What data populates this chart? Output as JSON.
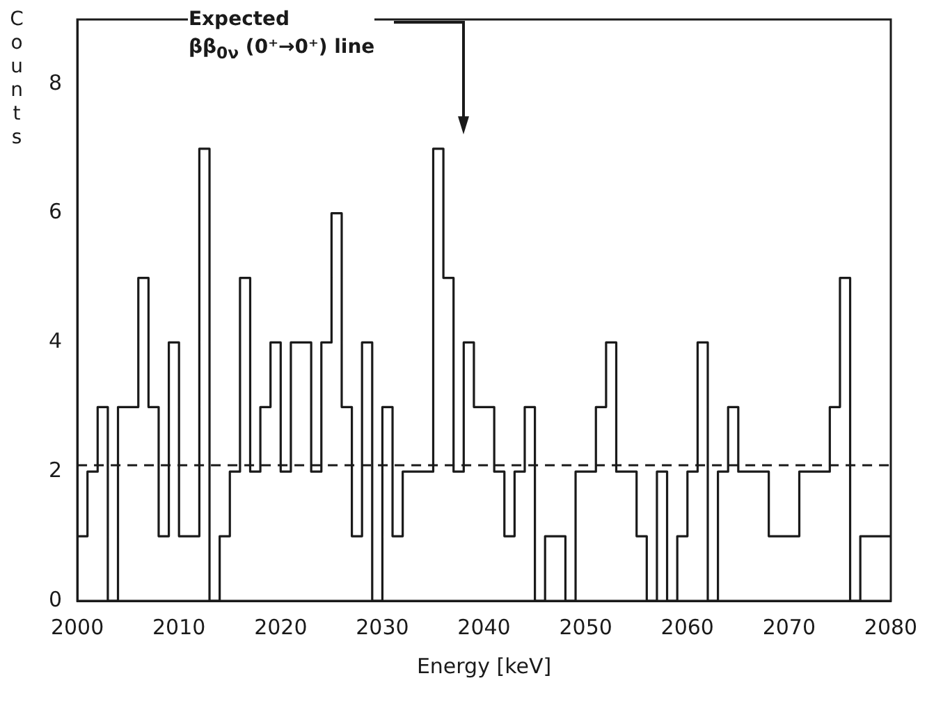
{
  "chart_data": {
    "type": "histogram",
    "xlabel": "Energy [keV]",
    "ylabel": "Counts",
    "bins": [
      2000,
      2001,
      2002,
      2003,
      2004,
      2005,
      2006,
      2007,
      2008,
      2009,
      2010,
      2011,
      2012,
      2013,
      2014,
      2015,
      2016,
      2017,
      2018,
      2019,
      2020,
      2021,
      2022,
      2023,
      2024,
      2025,
      2026,
      2027,
      2028,
      2029,
      2030,
      2031,
      2032,
      2033,
      2034,
      2035,
      2036,
      2037,
      2038,
      2039,
      2040,
      2041,
      2042,
      2043,
      2044,
      2045,
      2046,
      2047,
      2048,
      2049,
      2050,
      2051,
      2052,
      2053,
      2054,
      2055,
      2056,
      2057,
      2058,
      2059,
      2060,
      2061,
      2062,
      2063,
      2064,
      2065,
      2066,
      2067,
      2068,
      2069,
      2070,
      2071,
      2072,
      2073,
      2074,
      2075,
      2076,
      2077,
      2078,
      2079,
      2080
    ],
    "values": [
      1,
      2,
      3,
      0,
      3,
      3,
      5,
      3,
      1,
      4,
      1,
      1,
      7,
      0,
      1,
      2,
      5,
      2,
      3,
      4,
      2,
      4,
      4,
      2,
      4,
      6,
      3,
      1,
      4,
      0,
      3,
      1,
      2,
      2,
      2,
      7,
      5,
      2,
      4,
      3,
      3,
      2,
      1,
      2,
      3,
      0,
      1,
      1,
      0,
      2,
      2,
      3,
      4,
      2,
      2,
      1,
      0,
      2,
      0,
      1,
      2,
      4,
      0,
      2,
      3,
      2,
      2,
      2,
      1,
      1,
      1,
      2,
      2,
      2,
      3,
      5,
      0,
      1,
      1,
      1
    ],
    "color": "#1a1a1a",
    "xlim": [
      2000,
      2080
    ],
    "xticks": [
      2000,
      2010,
      2020,
      2030,
      2040,
      2050,
      2060,
      2070,
      2080
    ],
    "ylim": [
      0,
      9
    ],
    "yticks": [
      0,
      2,
      4,
      6,
      8
    ],
    "ref_lines": [
      {
        "axis": "y",
        "value": 2.1,
        "line_style": "dashed",
        "color": "#1a1a1a"
      }
    ],
    "annotations": [
      "Expected\nββ$_{0ν}$ (0⁺→0⁺) line"
    ],
    "grid": false,
    "legend": false
  }
}
